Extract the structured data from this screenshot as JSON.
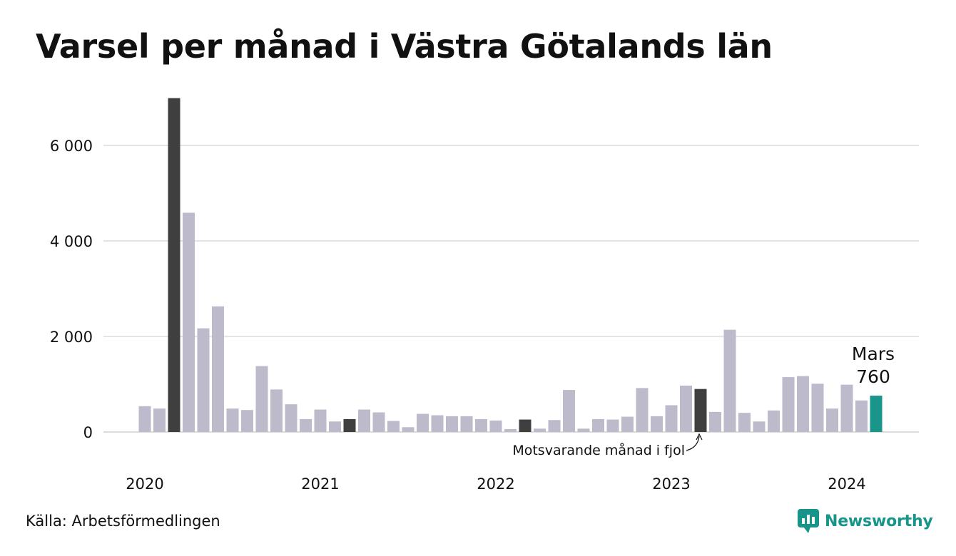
{
  "title": "Varsel per månad i Västra Götalands län",
  "source": "Källa: Arbetsförmedlingen",
  "brand": {
    "name": "Newsworthy",
    "icon": "newsworthy-logo-icon"
  },
  "colors": {
    "default_bar": "#bdbbcb",
    "highlight_bar": "#3f3f3f",
    "current_bar": "#1a9589",
    "grid": "#dcdcdc",
    "brand": "#17958a"
  },
  "annotations": {
    "current_month": "Mars",
    "current_value": "760",
    "comparison_note": "Motsvarande månad i fjol"
  },
  "chart_data": {
    "type": "bar",
    "title": "Varsel per månad i Västra Götalands län",
    "xlabel": "",
    "ylabel": "",
    "ylim": [
      0,
      7000
    ],
    "y_ticks": [
      0,
      2000,
      4000,
      6000
    ],
    "y_tick_labels": [
      "0",
      "2 000",
      "4 000",
      "6 000"
    ],
    "x_tick_labels": [
      "2020",
      "2021",
      "2022",
      "2023",
      "2024"
    ],
    "grid": true,
    "legend": "none",
    "categories": [
      "2020-01",
      "2020-02",
      "2020-03",
      "2020-04",
      "2020-05",
      "2020-06",
      "2020-07",
      "2020-08",
      "2020-09",
      "2020-10",
      "2020-11",
      "2020-12",
      "2021-01",
      "2021-02",
      "2021-03",
      "2021-04",
      "2021-05",
      "2021-06",
      "2021-07",
      "2021-08",
      "2021-09",
      "2021-10",
      "2021-11",
      "2021-12",
      "2022-01",
      "2022-02",
      "2022-03",
      "2022-04",
      "2022-05",
      "2022-06",
      "2022-07",
      "2022-08",
      "2022-09",
      "2022-10",
      "2022-11",
      "2022-12",
      "2023-01",
      "2023-02",
      "2023-03",
      "2023-04",
      "2023-05",
      "2023-06",
      "2023-07",
      "2023-08",
      "2023-09",
      "2023-10",
      "2023-11",
      "2023-12",
      "2024-01",
      "2024-02",
      "2024-03"
    ],
    "values": [
      540,
      490,
      6990,
      4590,
      2170,
      2630,
      490,
      460,
      1380,
      890,
      580,
      270,
      470,
      220,
      270,
      470,
      410,
      230,
      100,
      380,
      350,
      330,
      330,
      270,
      240,
      60,
      260,
      70,
      250,
      880,
      70,
      270,
      260,
      320,
      920,
      330,
      560,
      970,
      900,
      420,
      2140,
      400,
      220,
      450,
      1150,
      1170,
      1010,
      490,
      990,
      660,
      760
    ],
    "highlighted": [
      "2020-03",
      "2021-03",
      "2022-03",
      "2023-03"
    ],
    "current": "2024-03"
  }
}
